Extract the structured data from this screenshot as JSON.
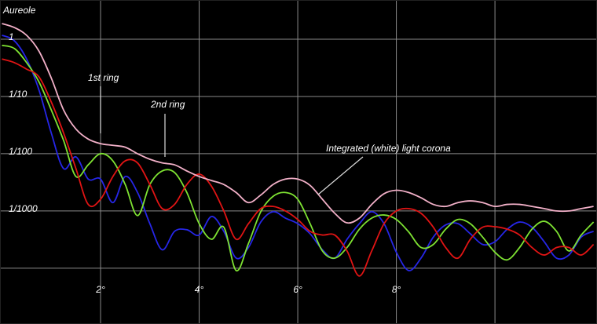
{
  "chart_data": {
    "type": "line",
    "log_y": true,
    "grid": true,
    "xlim": [
      -0.04,
      12.07
    ],
    "ylim": [
      1.06e-05,
      4.84
    ],
    "xticks": [
      {
        "value": 2,
        "label": "2°"
      },
      {
        "value": 4,
        "label": "4°"
      },
      {
        "value": 6,
        "label": "6°"
      },
      {
        "value": 8,
        "label": "8°"
      }
    ],
    "x_grid_unlabeled": [
      10
    ],
    "yticks": [
      {
        "value": 1,
        "label": "1"
      },
      {
        "value": 0.1,
        "label": "1/10"
      },
      {
        "value": 0.01,
        "label": "1/100"
      },
      {
        "value": 0.001,
        "label": "1/1000"
      }
    ],
    "y_grid_unlabeled": [
      0.0001
    ],
    "annotations": [
      "Aureole",
      "1st ring",
      "2nd ring",
      "Integrated (white) light corona"
    ],
    "x": [
      0,
      0.25,
      0.5,
      0.75,
      1,
      1.25,
      1.5,
      1.75,
      2,
      2.25,
      2.5,
      2.75,
      3,
      3.25,
      3.5,
      3.75,
      4,
      4.25,
      4.5,
      4.75,
      5,
      5.25,
      5.5,
      5.75,
      6,
      6.25,
      6.5,
      6.75,
      7,
      7.25,
      7.5,
      7.75,
      8,
      8.25,
      8.5,
      8.75,
      9,
      9.25,
      9.5,
      9.75,
      10,
      10.25,
      10.5,
      10.75,
      11,
      11.25,
      11.5,
      11.75,
      12
    ],
    "series": [
      {
        "color": "#2626e6",
        "values": [
          1.17,
          0.94,
          0.45,
          0.13,
          0.023,
          0.0055,
          0.0088,
          0.0036,
          0.0036,
          0.0014,
          0.004,
          0.0021,
          0.0006,
          0.00021,
          0.00044,
          0.00047,
          0.00038,
          0.0008,
          0.00044,
          0.00015,
          0.00023,
          0.00064,
          0.00097,
          0.00075,
          0.0006,
          0.0004,
          0.00021,
          0.00015,
          0.00032,
          0.0006,
          0.00097,
          0.0006,
          0.00019,
          9.1e-05,
          0.00015,
          0.00035,
          0.00057,
          0.0006,
          0.0004,
          0.00026,
          0.00029,
          0.00048,
          0.00064,
          0.00052,
          0.00029,
          0.00015,
          0.00017,
          0.00035,
          0.00044
        ]
      },
      {
        "color": "#7ee232",
        "values": [
          0.78,
          0.69,
          0.39,
          0.18,
          0.058,
          0.017,
          0.004,
          0.0064,
          0.01,
          0.0075,
          0.0029,
          0.00083,
          0.0029,
          0.005,
          0.0047,
          0.0021,
          0.0006,
          0.00032,
          0.00052,
          9.1e-05,
          0.00027,
          0.00097,
          0.0018,
          0.0021,
          0.0016,
          0.0006,
          0.0002,
          0.00015,
          0.00023,
          0.00048,
          0.00075,
          0.00085,
          0.00071,
          0.00043,
          0.00023,
          0.00026,
          0.00048,
          0.00071,
          0.0006,
          0.00035,
          0.00019,
          0.00014,
          0.00023,
          0.00048,
          0.00066,
          0.00044,
          0.0002,
          0.00038,
          0.00064
        ]
      },
      {
        "color": "#e01414",
        "values": [
          0.45,
          0.39,
          0.3,
          0.22,
          0.08,
          0.023,
          0.0055,
          0.0013,
          0.0016,
          0.004,
          0.0075,
          0.0069,
          0.0029,
          0.0011,
          0.0013,
          0.0029,
          0.0044,
          0.0027,
          0.001,
          0.00032,
          0.0006,
          0.0011,
          0.0012,
          0.001,
          0.00071,
          0.00044,
          0.00038,
          0.00038,
          0.0002,
          7.3e-05,
          0.0002,
          0.0006,
          0.001,
          0.0011,
          0.00091,
          0.00052,
          0.00023,
          0.00015,
          0.00032,
          0.00052,
          0.00053,
          0.00048,
          0.00038,
          0.00023,
          0.00017,
          0.00023,
          0.00023,
          0.00017,
          0.00026
        ]
      },
      {
        "color": "#f2b0c8",
        "values": [
          1.88,
          1.6,
          1.17,
          0.62,
          0.21,
          0.058,
          0.027,
          0.018,
          0.015,
          0.014,
          0.013,
          0.01,
          0.008,
          0.0069,
          0.0064,
          0.005,
          0.004,
          0.0034,
          0.0029,
          0.0021,
          0.0014,
          0.0019,
          0.0029,
          0.0036,
          0.0036,
          0.0028,
          0.0016,
          0.00091,
          0.00062,
          0.00075,
          0.0013,
          0.002,
          0.0023,
          0.0021,
          0.0017,
          0.0013,
          0.0012,
          0.0014,
          0.0015,
          0.0014,
          0.0012,
          0.0013,
          0.0013,
          0.0012,
          0.0011,
          0.001,
          0.001,
          0.0011,
          0.0012
        ]
      }
    ]
  }
}
